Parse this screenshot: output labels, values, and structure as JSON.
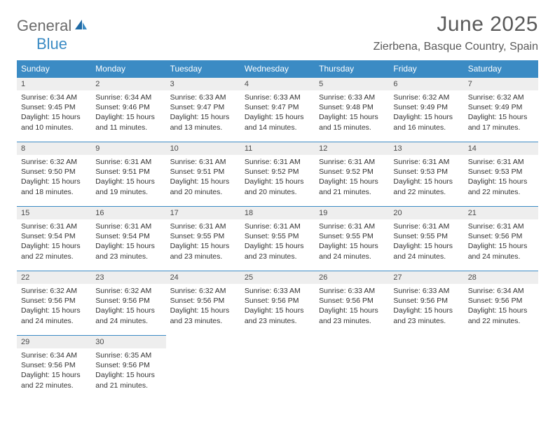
{
  "logo": {
    "part1": "General",
    "part2": "Blue"
  },
  "title": "June 2025",
  "subtitle": "Zierbena, Basque Country, Spain",
  "colors": {
    "header_bg": "#3b8bc4",
    "header_fg": "#ffffff",
    "daynum_bg": "#eeeeee",
    "border": "#3b8bc4",
    "text": "#333333",
    "logo_gray": "#6b6b6b",
    "logo_blue": "#3b8bc4"
  },
  "day_headers": [
    "Sunday",
    "Monday",
    "Tuesday",
    "Wednesday",
    "Thursday",
    "Friday",
    "Saturday"
  ],
  "weeks": [
    [
      {
        "n": "1",
        "sr": "6:34 AM",
        "ss": "9:45 PM",
        "dl": "15 hours and 10 minutes."
      },
      {
        "n": "2",
        "sr": "6:34 AM",
        "ss": "9:46 PM",
        "dl": "15 hours and 11 minutes."
      },
      {
        "n": "3",
        "sr": "6:33 AM",
        "ss": "9:47 PM",
        "dl": "15 hours and 13 minutes."
      },
      {
        "n": "4",
        "sr": "6:33 AM",
        "ss": "9:47 PM",
        "dl": "15 hours and 14 minutes."
      },
      {
        "n": "5",
        "sr": "6:33 AM",
        "ss": "9:48 PM",
        "dl": "15 hours and 15 minutes."
      },
      {
        "n": "6",
        "sr": "6:32 AM",
        "ss": "9:49 PM",
        "dl": "15 hours and 16 minutes."
      },
      {
        "n": "7",
        "sr": "6:32 AM",
        "ss": "9:49 PM",
        "dl": "15 hours and 17 minutes."
      }
    ],
    [
      {
        "n": "8",
        "sr": "6:32 AM",
        "ss": "9:50 PM",
        "dl": "15 hours and 18 minutes."
      },
      {
        "n": "9",
        "sr": "6:31 AM",
        "ss": "9:51 PM",
        "dl": "15 hours and 19 minutes."
      },
      {
        "n": "10",
        "sr": "6:31 AM",
        "ss": "9:51 PM",
        "dl": "15 hours and 20 minutes."
      },
      {
        "n": "11",
        "sr": "6:31 AM",
        "ss": "9:52 PM",
        "dl": "15 hours and 20 minutes."
      },
      {
        "n": "12",
        "sr": "6:31 AM",
        "ss": "9:52 PM",
        "dl": "15 hours and 21 minutes."
      },
      {
        "n": "13",
        "sr": "6:31 AM",
        "ss": "9:53 PM",
        "dl": "15 hours and 22 minutes."
      },
      {
        "n": "14",
        "sr": "6:31 AM",
        "ss": "9:53 PM",
        "dl": "15 hours and 22 minutes."
      }
    ],
    [
      {
        "n": "15",
        "sr": "6:31 AM",
        "ss": "9:54 PM",
        "dl": "15 hours and 22 minutes."
      },
      {
        "n": "16",
        "sr": "6:31 AM",
        "ss": "9:54 PM",
        "dl": "15 hours and 23 minutes."
      },
      {
        "n": "17",
        "sr": "6:31 AM",
        "ss": "9:55 PM",
        "dl": "15 hours and 23 minutes."
      },
      {
        "n": "18",
        "sr": "6:31 AM",
        "ss": "9:55 PM",
        "dl": "15 hours and 23 minutes."
      },
      {
        "n": "19",
        "sr": "6:31 AM",
        "ss": "9:55 PM",
        "dl": "15 hours and 24 minutes."
      },
      {
        "n": "20",
        "sr": "6:31 AM",
        "ss": "9:55 PM",
        "dl": "15 hours and 24 minutes."
      },
      {
        "n": "21",
        "sr": "6:31 AM",
        "ss": "9:56 PM",
        "dl": "15 hours and 24 minutes."
      }
    ],
    [
      {
        "n": "22",
        "sr": "6:32 AM",
        "ss": "9:56 PM",
        "dl": "15 hours and 24 minutes."
      },
      {
        "n": "23",
        "sr": "6:32 AM",
        "ss": "9:56 PM",
        "dl": "15 hours and 24 minutes."
      },
      {
        "n": "24",
        "sr": "6:32 AM",
        "ss": "9:56 PM",
        "dl": "15 hours and 23 minutes."
      },
      {
        "n": "25",
        "sr": "6:33 AM",
        "ss": "9:56 PM",
        "dl": "15 hours and 23 minutes."
      },
      {
        "n": "26",
        "sr": "6:33 AM",
        "ss": "9:56 PM",
        "dl": "15 hours and 23 minutes."
      },
      {
        "n": "27",
        "sr": "6:33 AM",
        "ss": "9:56 PM",
        "dl": "15 hours and 23 minutes."
      },
      {
        "n": "28",
        "sr": "6:34 AM",
        "ss": "9:56 PM",
        "dl": "15 hours and 22 minutes."
      }
    ],
    [
      {
        "n": "29",
        "sr": "6:34 AM",
        "ss": "9:56 PM",
        "dl": "15 hours and 22 minutes."
      },
      {
        "n": "30",
        "sr": "6:35 AM",
        "ss": "9:56 PM",
        "dl": "15 hours and 21 minutes."
      },
      null,
      null,
      null,
      null,
      null
    ]
  ],
  "labels": {
    "sunrise": "Sunrise: ",
    "sunset": "Sunset: ",
    "daylight": "Daylight: "
  }
}
